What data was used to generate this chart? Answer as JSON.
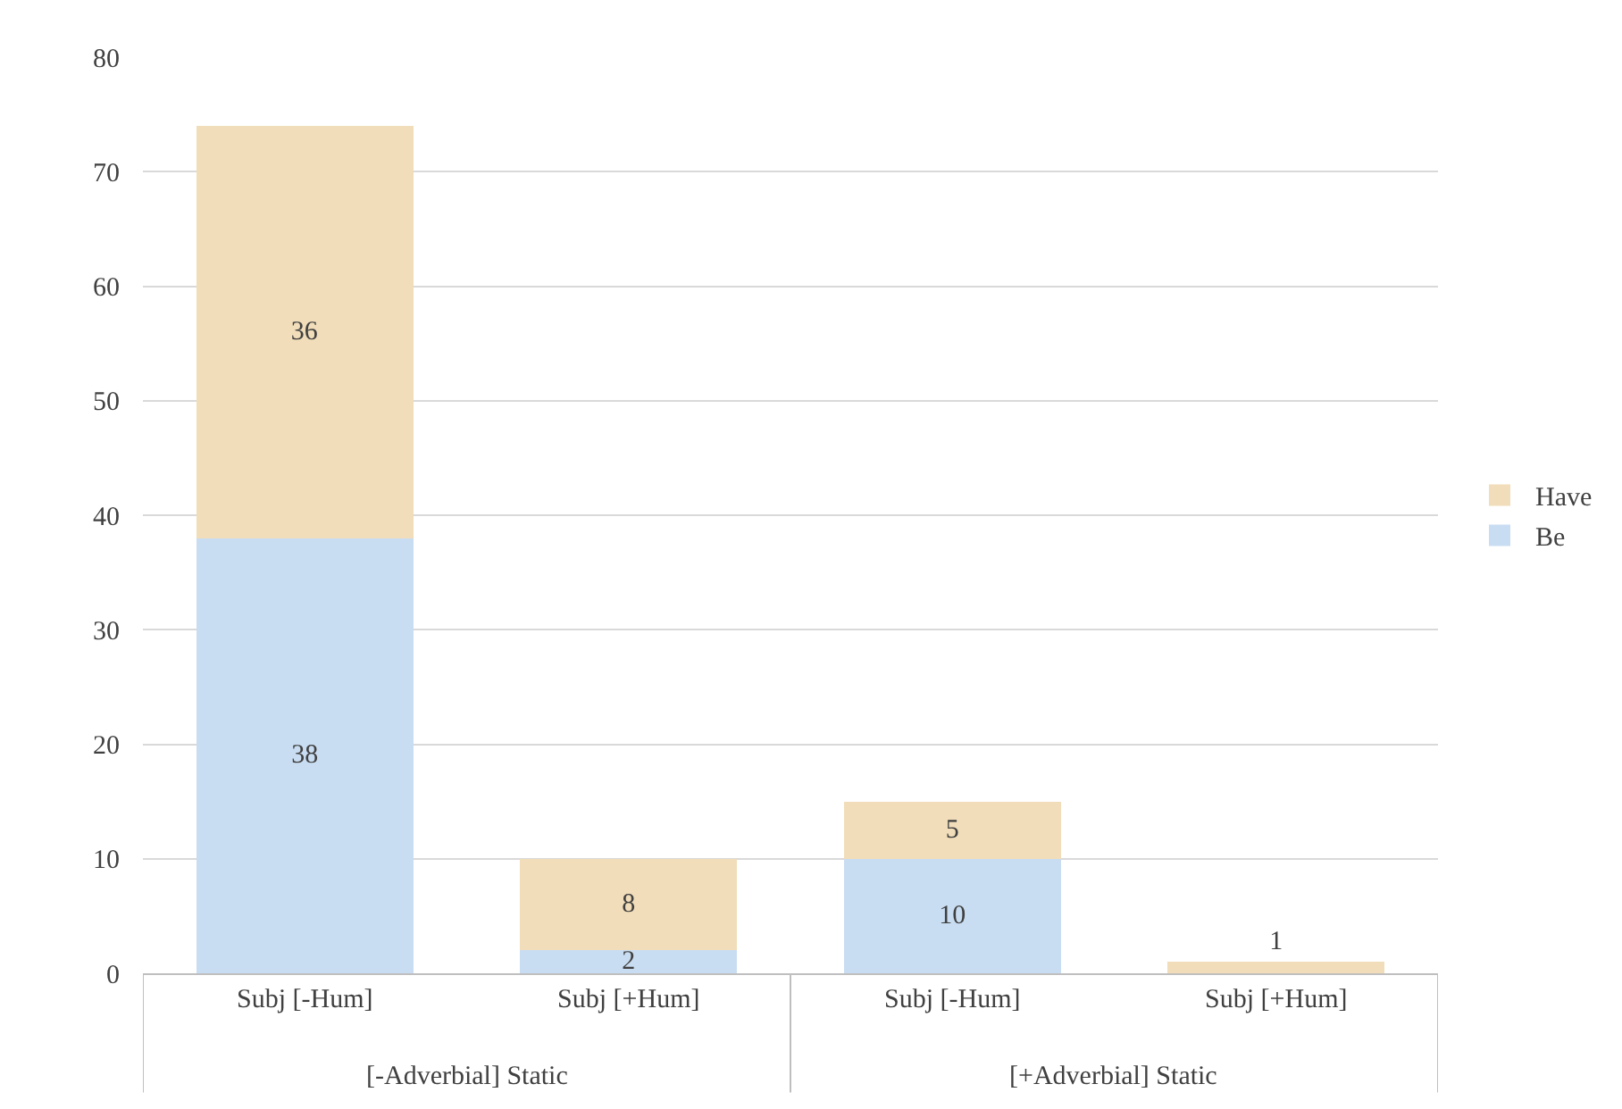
{
  "chart_data": {
    "type": "bar",
    "stacked": true,
    "categories": [
      "Subj [-Hum]",
      "Subj [+Hum]",
      "Subj [-Hum]",
      "Subj [+Hum]"
    ],
    "series": [
      {
        "name": "Be",
        "color": "#c9ddf2",
        "values": [
          38,
          2,
          10,
          0
        ],
        "value_labels": [
          "38",
          "2",
          "10",
          null
        ]
      },
      {
        "name": "Have",
        "color": "#f1ddb9",
        "values": [
          36,
          8,
          5,
          1
        ],
        "value_labels": [
          "36",
          "8",
          "5",
          "1"
        ]
      }
    ],
    "ylim": [
      0,
      80
    ],
    "yticks": [
      0,
      10,
      20,
      30,
      40,
      50,
      60,
      70,
      80
    ],
    "grid": "y",
    "legend": "right",
    "annotations": [
      "[-Adverbial] Static",
      "[+Adverbial] Static"
    ]
  }
}
